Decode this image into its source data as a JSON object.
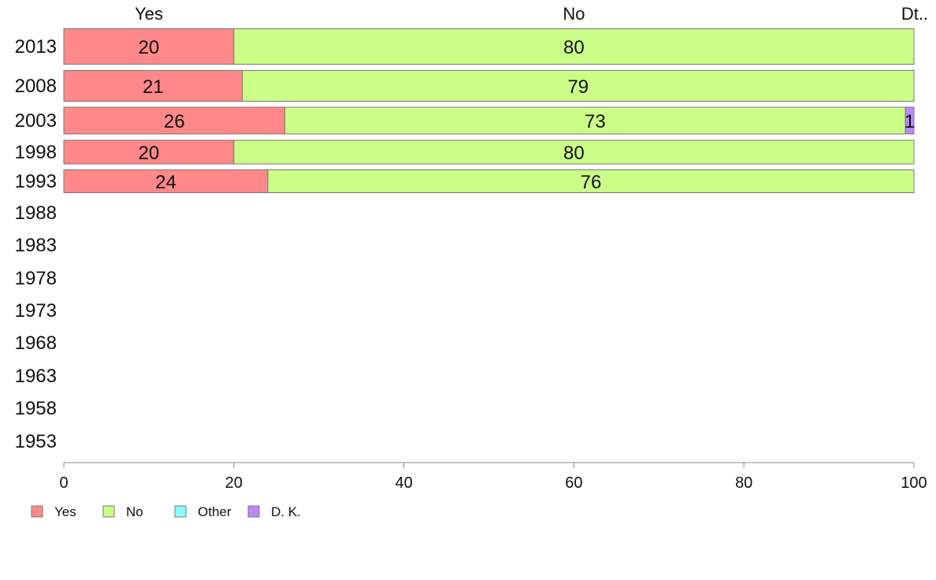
{
  "chart_data": {
    "type": "bar",
    "orientation": "horizontal",
    "stacked": true,
    "categories": [
      "2013",
      "2008",
      "2003",
      "1998",
      "1993",
      "1988",
      "1983",
      "1978",
      "1973",
      "1968",
      "1963",
      "1958",
      "1953"
    ],
    "series": [
      {
        "name": "Yes",
        "color": "#ff8888",
        "values": [
          20,
          21,
          26,
          20,
          24,
          null,
          null,
          null,
          null,
          null,
          null,
          null,
          null
        ]
      },
      {
        "name": "No",
        "color": "#ccff88",
        "values": [
          80,
          79,
          73,
          80,
          76,
          null,
          null,
          null,
          null,
          null,
          null,
          null,
          null
        ]
      },
      {
        "name": "Other",
        "color": "#88ffff",
        "values": [
          0,
          0,
          0,
          0,
          0,
          null,
          null,
          null,
          null,
          null,
          null,
          null,
          null
        ]
      },
      {
        "name": "D. K.",
        "color": "#bb88ff",
        "values": [
          0,
          0,
          1,
          0,
          0,
          null,
          null,
          null,
          null,
          null,
          null,
          null,
          null
        ]
      }
    ],
    "column_headers": [
      "Yes",
      "No",
      "Dt.."
    ],
    "x_ticks": [
      0,
      20,
      40,
      60,
      80,
      100
    ],
    "xlim": [
      0,
      100
    ],
    "grid": false,
    "legend_position": "bottom-left",
    "title": "",
    "xlabel": "",
    "ylabel": ""
  }
}
